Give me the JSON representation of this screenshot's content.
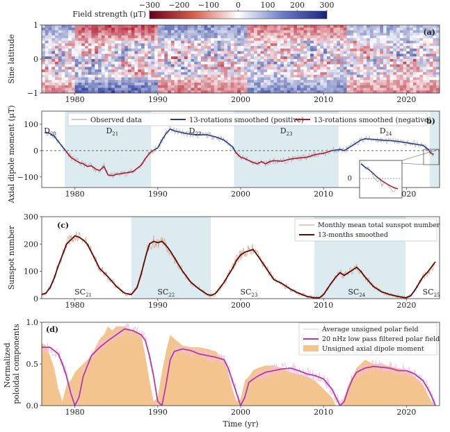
{
  "colorbar": {
    "label": "Field strength (μT)",
    "ticks": [
      "−300",
      "−200",
      "−100",
      "0",
      "100",
      "200",
      "300"
    ],
    "min": -300,
    "max": 300,
    "colors": [
      "#b2182b",
      "#ffffff",
      "#2a3a9a"
    ]
  },
  "chart_data": [
    {
      "id": "a",
      "type": "heatmap",
      "panel_label": "(a)",
      "ylabel": "Sine latitude",
      "yticks": [
        "1",
        "0",
        "−1"
      ],
      "ylim": [
        -1,
        1
      ],
      "xlim": [
        1976,
        2024
      ],
      "xticks": [
        1980,
        1990,
        2000,
        2010,
        2020
      ],
      "polar_sign_periods": [
        {
          "start": 1976,
          "end": 1980,
          "north": 0.5,
          "south": -0.5
        },
        {
          "start": 1980,
          "end": 1990,
          "north": -0.8,
          "south": 0.8
        },
        {
          "start": 1990,
          "end": 2001,
          "north": 0.6,
          "south": -0.6
        },
        {
          "start": 2001,
          "end": 2013,
          "north": -0.6,
          "south": 0.6
        },
        {
          "start": 2013,
          "end": 2024,
          "north": 0.4,
          "south": -0.5
        }
      ]
    },
    {
      "id": "b",
      "type": "line",
      "panel_label": "(b)",
      "ylabel": "Axial dipole moment (μT)",
      "ylim": [
        -140,
        150
      ],
      "yticks": [
        "100",
        "0",
        "−100"
      ],
      "xlim": [
        1976,
        2024
      ],
      "xticks": [
        1980,
        1990,
        2000,
        2010,
        2020
      ],
      "legend": [
        "Observed data",
        "13-rotations smoothed (positive)",
        "13-rotations smoothed (negative)"
      ],
      "shaded_intervals": [
        [
          1978.8,
          1989.2
        ],
        [
          1999.2,
          2011.8
        ],
        [
          2022.8,
          2024
        ]
      ],
      "interval_labels": [
        {
          "x": 1976.5,
          "base": "D",
          "sub": "20"
        },
        {
          "x": 1984,
          "base": "D",
          "sub": "21"
        },
        {
          "x": 1994,
          "base": "D",
          "sub": "22"
        },
        {
          "x": 2005,
          "base": "D",
          "sub": "23"
        },
        {
          "x": 2017,
          "base": "D",
          "sub": "24"
        }
      ],
      "x": [
        1976.5,
        1977,
        1977.5,
        1978,
        1978.5,
        1979,
        1979.5,
        1980,
        1980.5,
        1981,
        1981.5,
        1982,
        1982.5,
        1983,
        1983.5,
        1984,
        1984.5,
        1985,
        1986,
        1987,
        1988,
        1988.5,
        1989,
        1989.5,
        1990,
        1990.5,
        1991,
        1991.5,
        1992,
        1993,
        1994,
        1995,
        1996,
        1997,
        1998,
        1999,
        1999.5,
        2000,
        2000.5,
        2001,
        2001.5,
        2002,
        2002.5,
        2003,
        2003.5,
        2004,
        2005,
        2006,
        2007,
        2008,
        2009,
        2010,
        2010.5,
        2011,
        2011.5,
        2012,
        2012.5,
        2013,
        2013.5,
        2014,
        2014.5,
        2015,
        2016,
        2017,
        2018,
        2019,
        2020,
        2021,
        2022,
        2022.5,
        2023,
        2023.3
      ],
      "values": [
        70,
        65,
        55,
        35,
        15,
        -5,
        -25,
        -35,
        -45,
        -50,
        -60,
        -58,
        -70,
        -75,
        -60,
        -92,
        -95,
        -90,
        -85,
        -80,
        -55,
        -30,
        -10,
        2,
        10,
        40,
        65,
        82,
        75,
        68,
        62,
        60,
        60,
        52,
        40,
        15,
        -10,
        -25,
        -30,
        -38,
        -45,
        -50,
        -42,
        -50,
        -42,
        -38,
        -40,
        -32,
        -28,
        -25,
        -15,
        -10,
        -5,
        0,
        2,
        5,
        0,
        10,
        20,
        30,
        40,
        45,
        43,
        40,
        38,
        35,
        30,
        25,
        20,
        8,
        -10,
        -15
      ]
    },
    {
      "id": "c",
      "type": "line",
      "panel_label": "(c)",
      "ylabel": "Sunspot number",
      "ylim": [
        0,
        300
      ],
      "yticks": [
        "300",
        "200",
        "100",
        "0"
      ],
      "xlim": [
        1976,
        2024
      ],
      "xticks": [
        1980,
        1990,
        2000,
        2010,
        2020
      ],
      "legend": [
        "Monthly mean total sunspot number",
        "13-months smoothed"
      ],
      "shaded_intervals": [
        [
          1986.8,
          1996.4
        ],
        [
          2008.9,
          2019.9
        ]
      ],
      "cycle_labels": [
        {
          "x": 1981,
          "base": "SC",
          "sub": "21"
        },
        {
          "x": 1991,
          "base": "SC",
          "sub": "22"
        },
        {
          "x": 2001,
          "base": "SC",
          "sub": "23"
        },
        {
          "x": 2014,
          "base": "SC",
          "sub": "24"
        },
        {
          "x": 2023,
          "base": "SC",
          "sub": "25"
        }
      ],
      "x": [
        1976,
        1976.5,
        1977,
        1977.5,
        1978,
        1978.5,
        1979,
        1979.5,
        1980,
        1980.5,
        1981,
        1981.5,
        1982,
        1982.5,
        1983,
        1984,
        1985,
        1986,
        1986.8,
        1987.5,
        1988,
        1988.5,
        1989,
        1989.5,
        1990,
        1990.5,
        1991,
        1991.5,
        1992,
        1993,
        1994,
        1995,
        1996,
        1996.5,
        1997,
        1998,
        1999,
        1999.5,
        2000,
        2000.5,
        2001,
        2001.5,
        2002,
        2003,
        2004,
        2005,
        2006,
        2007,
        2008,
        2008.9,
        2009.5,
        2010,
        2011,
        2011.5,
        2012,
        2012.5,
        2013,
        2013.5,
        2014,
        2014.5,
        2015,
        2016,
        2017,
        2018,
        2019,
        2019.9,
        2020.5,
        2021,
        2021.5,
        2022,
        2022.5,
        2023,
        2023.5
      ],
      "values": [
        15,
        20,
        40,
        75,
        120,
        160,
        200,
        215,
        230,
        225,
        215,
        200,
        170,
        140,
        110,
        80,
        45,
        20,
        15,
        40,
        90,
        150,
        200,
        210,
        205,
        210,
        195,
        175,
        150,
        100,
        60,
        35,
        15,
        12,
        20,
        60,
        110,
        140,
        160,
        170,
        175,
        180,
        160,
        115,
        70,
        55,
        35,
        20,
        8,
        3,
        3,
        15,
        60,
        80,
        95,
        85,
        95,
        105,
        115,
        100,
        80,
        45,
        25,
        15,
        8,
        3,
        10,
        30,
        55,
        80,
        95,
        115,
        135
      ],
      "raw_noise_amplitude": 35
    },
    {
      "id": "d",
      "type": "area",
      "panel_label": "(d)",
      "ylabel": "Normalized poloidal components",
      "xlabel": "Time (yr)",
      "ylim": [
        0,
        1.0
      ],
      "yticks": [
        "1.0",
        "0.5",
        "0.0"
      ],
      "xlim": [
        1976,
        2024
      ],
      "xticks": [
        1980,
        1990,
        2000,
        2010,
        2020
      ],
      "legend": [
        "Average unsigned polar field",
        "20 nHz low pass filtered polar field",
        "Unsigned axial dipole moment"
      ],
      "area_x": [
        1976,
        1976.5,
        1977,
        1977.5,
        1978,
        1978.5,
        1979,
        1979.5,
        1980,
        1980.5,
        1981,
        1981.5,
        1982,
        1982.5,
        1983,
        1983.5,
        1984,
        1984.5,
        1985,
        1986,
        1987,
        1988,
        1988.5,
        1989,
        1989.5,
        1990,
        1990.5,
        1991,
        1991.5,
        1992,
        1993,
        1994,
        1995,
        1996,
        1997,
        1998,
        1998.5,
        1999,
        1999.5,
        2000,
        2000.5,
        2001,
        2001.5,
        2002,
        2003,
        2004,
        2005,
        2006,
        2007,
        2008,
        2009,
        2010,
        2011,
        2011.5,
        2012,
        2012.5,
        2013,
        2013.5,
        2014,
        2014.5,
        2015,
        2016,
        2017,
        2018,
        2019,
        2020,
        2021,
        2022,
        2022.5,
        2023,
        2023.5
      ],
      "area_values": [
        0.75,
        0.72,
        0.6,
        0.45,
        0.2,
        0.05,
        0.25,
        0.3,
        0.4,
        0.45,
        0.5,
        0.55,
        0.6,
        0.7,
        0.8,
        0.85,
        0.95,
        0.9,
        0.95,
        0.95,
        0.9,
        0.85,
        0.6,
        0.3,
        0.05,
        0.1,
        0.4,
        0.65,
        0.85,
        0.8,
        0.72,
        0.7,
        0.7,
        0.68,
        0.65,
        0.55,
        0.4,
        0.2,
        0.05,
        0.08,
        0.3,
        0.35,
        0.42,
        0.45,
        0.48,
        0.48,
        0.45,
        0.4,
        0.38,
        0.35,
        0.3,
        0.2,
        0.1,
        0.0,
        0.0,
        0.1,
        0.25,
        0.35,
        0.45,
        0.5,
        0.55,
        0.5,
        0.5,
        0.47,
        0.45,
        0.42,
        0.35,
        0.25,
        0.15,
        0.05,
        0.0
      ],
      "lowpass_x": [
        1976,
        1977,
        1978,
        1978.5,
        1979,
        1979.5,
        1980,
        1980.5,
        1981,
        1982,
        1983,
        1984,
        1985,
        1986,
        1987,
        1988,
        1988.5,
        1989,
        1989.5,
        1990,
        1990.5,
        1991,
        1991.5,
        1992,
        1993,
        1994,
        1995,
        1996,
        1997,
        1998,
        1998.5,
        1999,
        1999.5,
        2000,
        2000.5,
        2001,
        2002,
        2003,
        2004,
        2005,
        2006,
        2007,
        2008,
        2009,
        2010,
        2011,
        2011.5,
        2012,
        2012.5,
        2013,
        2013.5,
        2014,
        2015,
        2016,
        2017,
        2018,
        2019,
        2020,
        2021,
        2022,
        2022.5,
        2023,
        2023.5
      ],
      "lowpass_values": [
        0.7,
        0.7,
        0.62,
        0.5,
        0.35,
        0.15,
        0.0,
        0.1,
        0.35,
        0.6,
        0.7,
        0.78,
        0.85,
        0.92,
        0.9,
        0.85,
        0.78,
        0.6,
        0.35,
        0.05,
        0.0,
        0.25,
        0.55,
        0.65,
        0.68,
        0.66,
        0.62,
        0.6,
        0.58,
        0.55,
        0.45,
        0.3,
        0.15,
        0.0,
        0.1,
        0.28,
        0.35,
        0.4,
        0.42,
        0.44,
        0.45,
        0.42,
        0.38,
        0.36,
        0.32,
        0.2,
        0.1,
        0.0,
        0.05,
        0.2,
        0.32,
        0.4,
        0.45,
        0.47,
        0.46,
        0.45,
        0.42,
        0.42,
        0.38,
        0.3,
        0.22,
        0.12,
        0.0
      ]
    }
  ]
}
